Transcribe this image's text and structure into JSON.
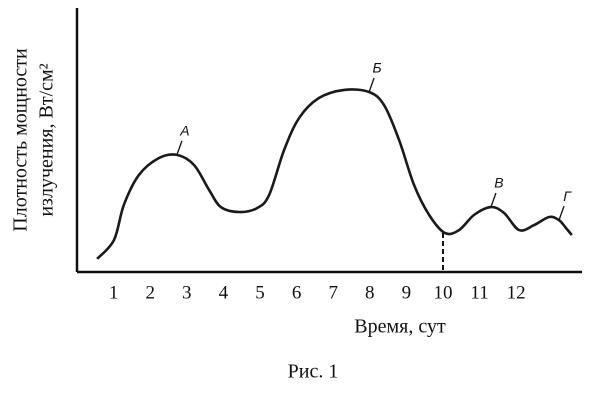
{
  "chart_data": {
    "type": "line",
    "caption": "Рис. 1",
    "x_label": "Время, сут",
    "y_label": [
      "Плотность мощности",
      "излучения, Вт/см²"
    ],
    "xlim": [
      0,
      13.7
    ],
    "xticks": [
      1,
      2,
      3,
      4,
      5,
      6,
      7,
      8,
      9,
      10,
      11,
      12
    ],
    "ylim": [
      0,
      100
    ],
    "grid": false,
    "series": [
      {
        "color": "#1a1a1a",
        "x": [
          0.55,
          1.01,
          1.28,
          1.69,
          2.24,
          2.73,
          3.2,
          3.61,
          3.93,
          4.43,
          4.92,
          5.25,
          5.66,
          6.07,
          6.61,
          7.3,
          7.98,
          8.39,
          8.8,
          9.21,
          9.62,
          10.05,
          10.44,
          10.85,
          11.31,
          11.67,
          12.08,
          12.49,
          12.9,
          13.17,
          13.36,
          13.52
        ],
        "values": [
          5,
          12.2,
          25.6,
          37,
          43.5,
          44.7,
          40.8,
          31.3,
          24.8,
          22.9,
          24.4,
          29.4,
          46.6,
          58.8,
          66.4,
          69.5,
          68.7,
          63.7,
          50.4,
          33.2,
          21.8,
          14.9,
          16,
          21.8,
          24.8,
          22.5,
          16,
          17.9,
          21,
          19.8,
          16.8,
          14.1
        ]
      }
    ],
    "annotations": [
      {
        "text": "А",
        "index": 5
      },
      {
        "text": "Б",
        "index": 16
      },
      {
        "text": "В",
        "index": 24
      },
      {
        "text": "Г",
        "index": 29
      }
    ]
  }
}
